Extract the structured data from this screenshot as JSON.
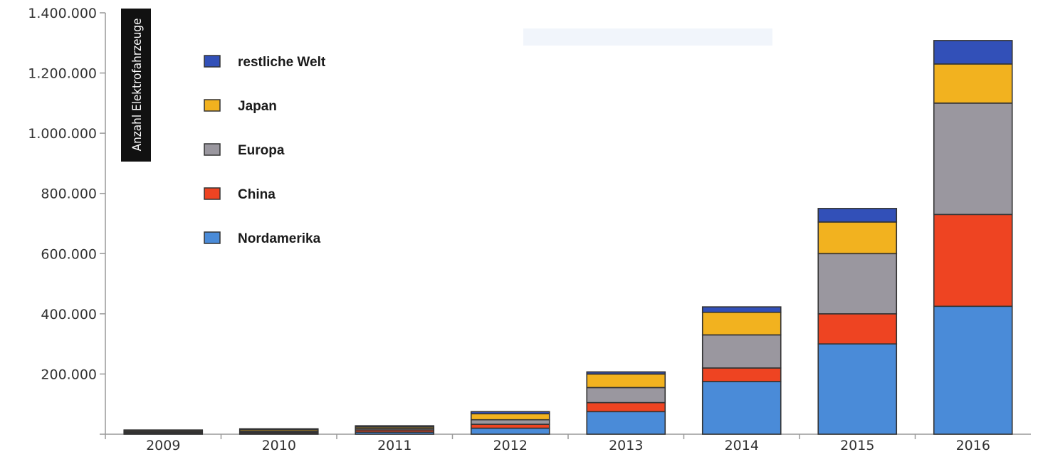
{
  "chart_data": {
    "type": "bar",
    "stacked": true,
    "ylabel": "Anzahl Elektrofahrzeuge",
    "xlabel": "",
    "ylim": [
      0,
      1400000
    ],
    "yticks": [
      0,
      200000,
      400000,
      600000,
      800000,
      1000000,
      1200000,
      1400000
    ],
    "ytick_labels": [
      "",
      "200.000",
      "400.000",
      "600.000",
      "800.000",
      "1.000.000",
      "1.200.000",
      "1.400.000"
    ],
    "categories": [
      "2009",
      "2010",
      "2011",
      "2012",
      "2013",
      "2014",
      "2015",
      "2016"
    ],
    "series": [
      {
        "name": "Nordamerika",
        "color": "#4a8bd8",
        "values": [
          2000,
          2000,
          7000,
          20000,
          75000,
          175000,
          300000,
          425000
        ]
      },
      {
        "name": "China",
        "color": "#ee4422",
        "values": [
          3000,
          4000,
          7000,
          13000,
          30000,
          45000,
          100000,
          305000
        ]
      },
      {
        "name": "Europa",
        "color": "#9a979f",
        "values": [
          3000,
          4000,
          5000,
          15000,
          50000,
          110000,
          200000,
          370000
        ]
      },
      {
        "name": "Japan",
        "color": "#f2b21f",
        "values": [
          4000,
          5000,
          5000,
          20000,
          45000,
          75000,
          105000,
          130000
        ]
      },
      {
        "name": "restliche Welt",
        "color": "#3250b8",
        "values": [
          2000,
          3000,
          4000,
          7000,
          7000,
          18000,
          45000,
          78000
        ]
      }
    ],
    "legend": {
      "position": "top-left",
      "order": [
        "restliche Welt",
        "Japan",
        "Europa",
        "China",
        "Nordamerika"
      ]
    },
    "grid": false,
    "colors": {
      "axis": "#999999",
      "bar_edge": "#333333",
      "ylabel_bg": "#111111"
    }
  }
}
